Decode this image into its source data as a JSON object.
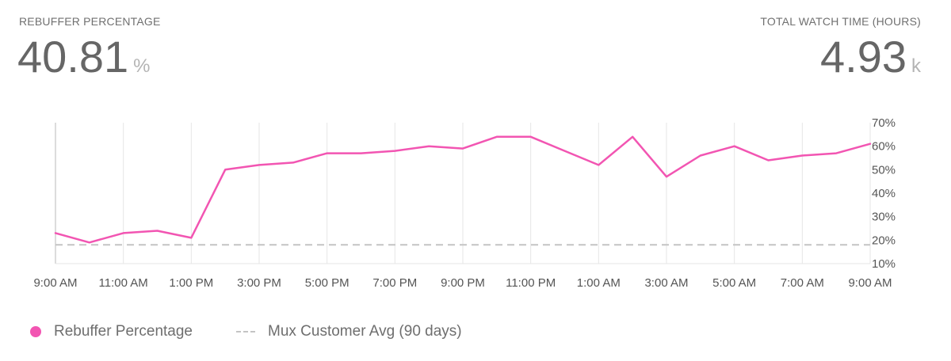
{
  "metrics": {
    "left": {
      "label": "REBUFFER PERCENTAGE",
      "value": "40.81",
      "unit": "%"
    },
    "right": {
      "label": "TOTAL WATCH TIME (HOURS)",
      "value": "4.93",
      "unit": "k"
    }
  },
  "chart_data": {
    "type": "line",
    "x": [
      "9:00 AM",
      "10:00 AM",
      "11:00 AM",
      "12:00 PM",
      "1:00 PM",
      "2:00 PM",
      "3:00 PM",
      "4:00 PM",
      "5:00 PM",
      "6:00 PM",
      "7:00 PM",
      "8:00 PM",
      "9:00 PM",
      "10:00 PM",
      "11:00 PM",
      "12:00 AM",
      "1:00 AM",
      "2:00 AM",
      "3:00 AM",
      "4:00 AM",
      "5:00 AM",
      "6:00 AM",
      "7:00 AM",
      "8:00 AM",
      "9:00 AM"
    ],
    "x_tick_labels": [
      "9:00 AM",
      "11:00 AM",
      "1:00 PM",
      "3:00 PM",
      "5:00 PM",
      "7:00 PM",
      "9:00 PM",
      "11:00 PM",
      "1:00 AM",
      "3:00 AM",
      "5:00 AM",
      "7:00 AM",
      "9:00 AM"
    ],
    "series": [
      {
        "name": "Rebuffer Percentage",
        "color": "#f255b2",
        "values": [
          23,
          19,
          23,
          24,
          21,
          50,
          52,
          53,
          57,
          57,
          58,
          60,
          59,
          64,
          64,
          58,
          52,
          64,
          47,
          56,
          60,
          54,
          56,
          57,
          61
        ]
      },
      {
        "name": "Mux Customer Avg (90 days)",
        "color": "#c4c4c4",
        "dashed": true,
        "values": [
          18,
          18,
          18,
          18,
          18,
          18,
          18,
          18,
          18,
          18,
          18,
          18,
          18,
          18,
          18,
          18,
          18,
          18,
          18,
          18,
          18,
          18,
          18,
          18,
          18
        ]
      }
    ],
    "y_ticks": [
      "10%",
      "20%",
      "30%",
      "40%",
      "50%",
      "60%",
      "70%"
    ],
    "ylim": [
      10,
      70
    ],
    "grid": true,
    "legend_position": "bottom-left"
  }
}
